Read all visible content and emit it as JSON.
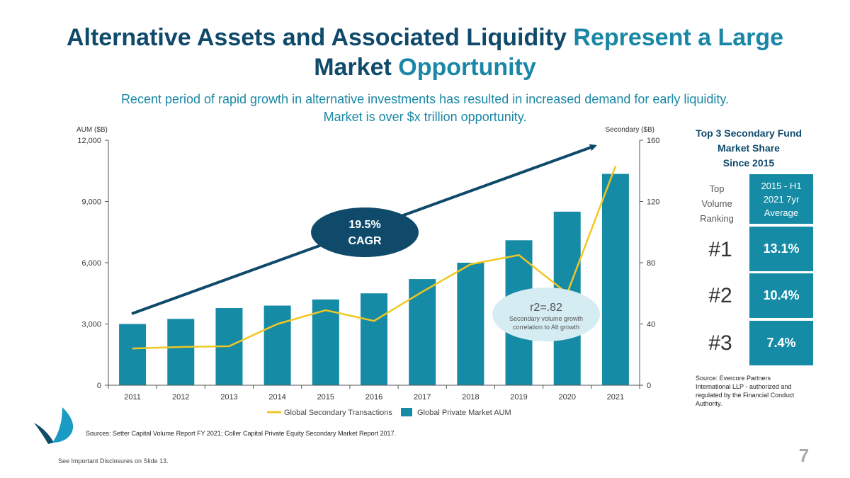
{
  "title": {
    "part1": "Alternative Assets and Associated Liquidity ",
    "part2": "Represent a Large",
    "part3": "Market ",
    "part4": "Opportunity"
  },
  "subtitle": {
    "line1": "Recent period of rapid growth in alternative investments has resulted in increased demand for early liquidity.",
    "line2": "Market is over $x trillion opportunity."
  },
  "chart_data": {
    "type": "bar",
    "categories": [
      "2011",
      "2012",
      "2013",
      "2014",
      "2015",
      "2016",
      "2017",
      "2018",
      "2019",
      "2020",
      "2021"
    ],
    "series": [
      {
        "name": "Global Private Market AUM",
        "type": "bar",
        "axis": "left",
        "values": [
          3000,
          3250,
          3780,
          3900,
          4200,
          4500,
          5200,
          6000,
          7100,
          8500,
          10350
        ]
      },
      {
        "name": "Global Secondary Transactions",
        "type": "line",
        "axis": "right",
        "values": [
          24,
          25,
          25.5,
          40,
          49,
          42,
          61,
          79,
          85,
          60,
          143
        ]
      }
    ],
    "left_axis": {
      "label": "AUM ($B)",
      "min": 0,
      "max": 12000,
      "ticks": [
        "0",
        "3,000",
        "6,000",
        "9,000",
        "12,000"
      ]
    },
    "right_axis": {
      "label": "Secondary ($B)",
      "min": 0,
      "max": 160,
      "ticks": [
        "0",
        "40",
        "80",
        "120",
        "160"
      ]
    },
    "annotations": {
      "cagr_value": "19.5%",
      "cagr_label": "CAGR",
      "r2_title": "r2=.82",
      "r2_line1": "Secondary volume growth",
      "r2_line2": "correlation to Alt growth"
    },
    "legend_position": "bottom"
  },
  "colors": {
    "bar": "#168ba6",
    "line": "#f2c720",
    "arrow": "#0f4a6b",
    "cagr_ellipse": "#0f4a6b",
    "r2_ellipse": "#d4ecf2"
  },
  "side_panel": {
    "title_line1": "Top 3 Secondary Fund",
    "title_line2": "Market Share",
    "title_line3": "Since 2015",
    "rank_header_line1": "Top",
    "rank_header_line2": "Volume",
    "rank_header_line3": "Ranking",
    "value_header_line1": "2015 - H1",
    "value_header_line2": "2021 7yr",
    "value_header_line3": "Average",
    "rows": [
      {
        "rank": "#1",
        "share": "13.1%"
      },
      {
        "rank": "#2",
        "share": "10.4%"
      },
      {
        "rank": "#3",
        "share": "7.4%"
      }
    ],
    "source_line1": "Source: Evercore Partners",
    "source_line2": "International LLP - authorized and",
    "source_line3": "regulated by the Financial Conduct",
    "source_line4": "Authority."
  },
  "footer": {
    "sources": "Sources: Setter Capital Volume Report FY 2021; Coller Capital Private Equity Secondary Market Report 2017.",
    "disclosure": "See Important Disclosures on Slide 13.",
    "page_number": "7"
  }
}
